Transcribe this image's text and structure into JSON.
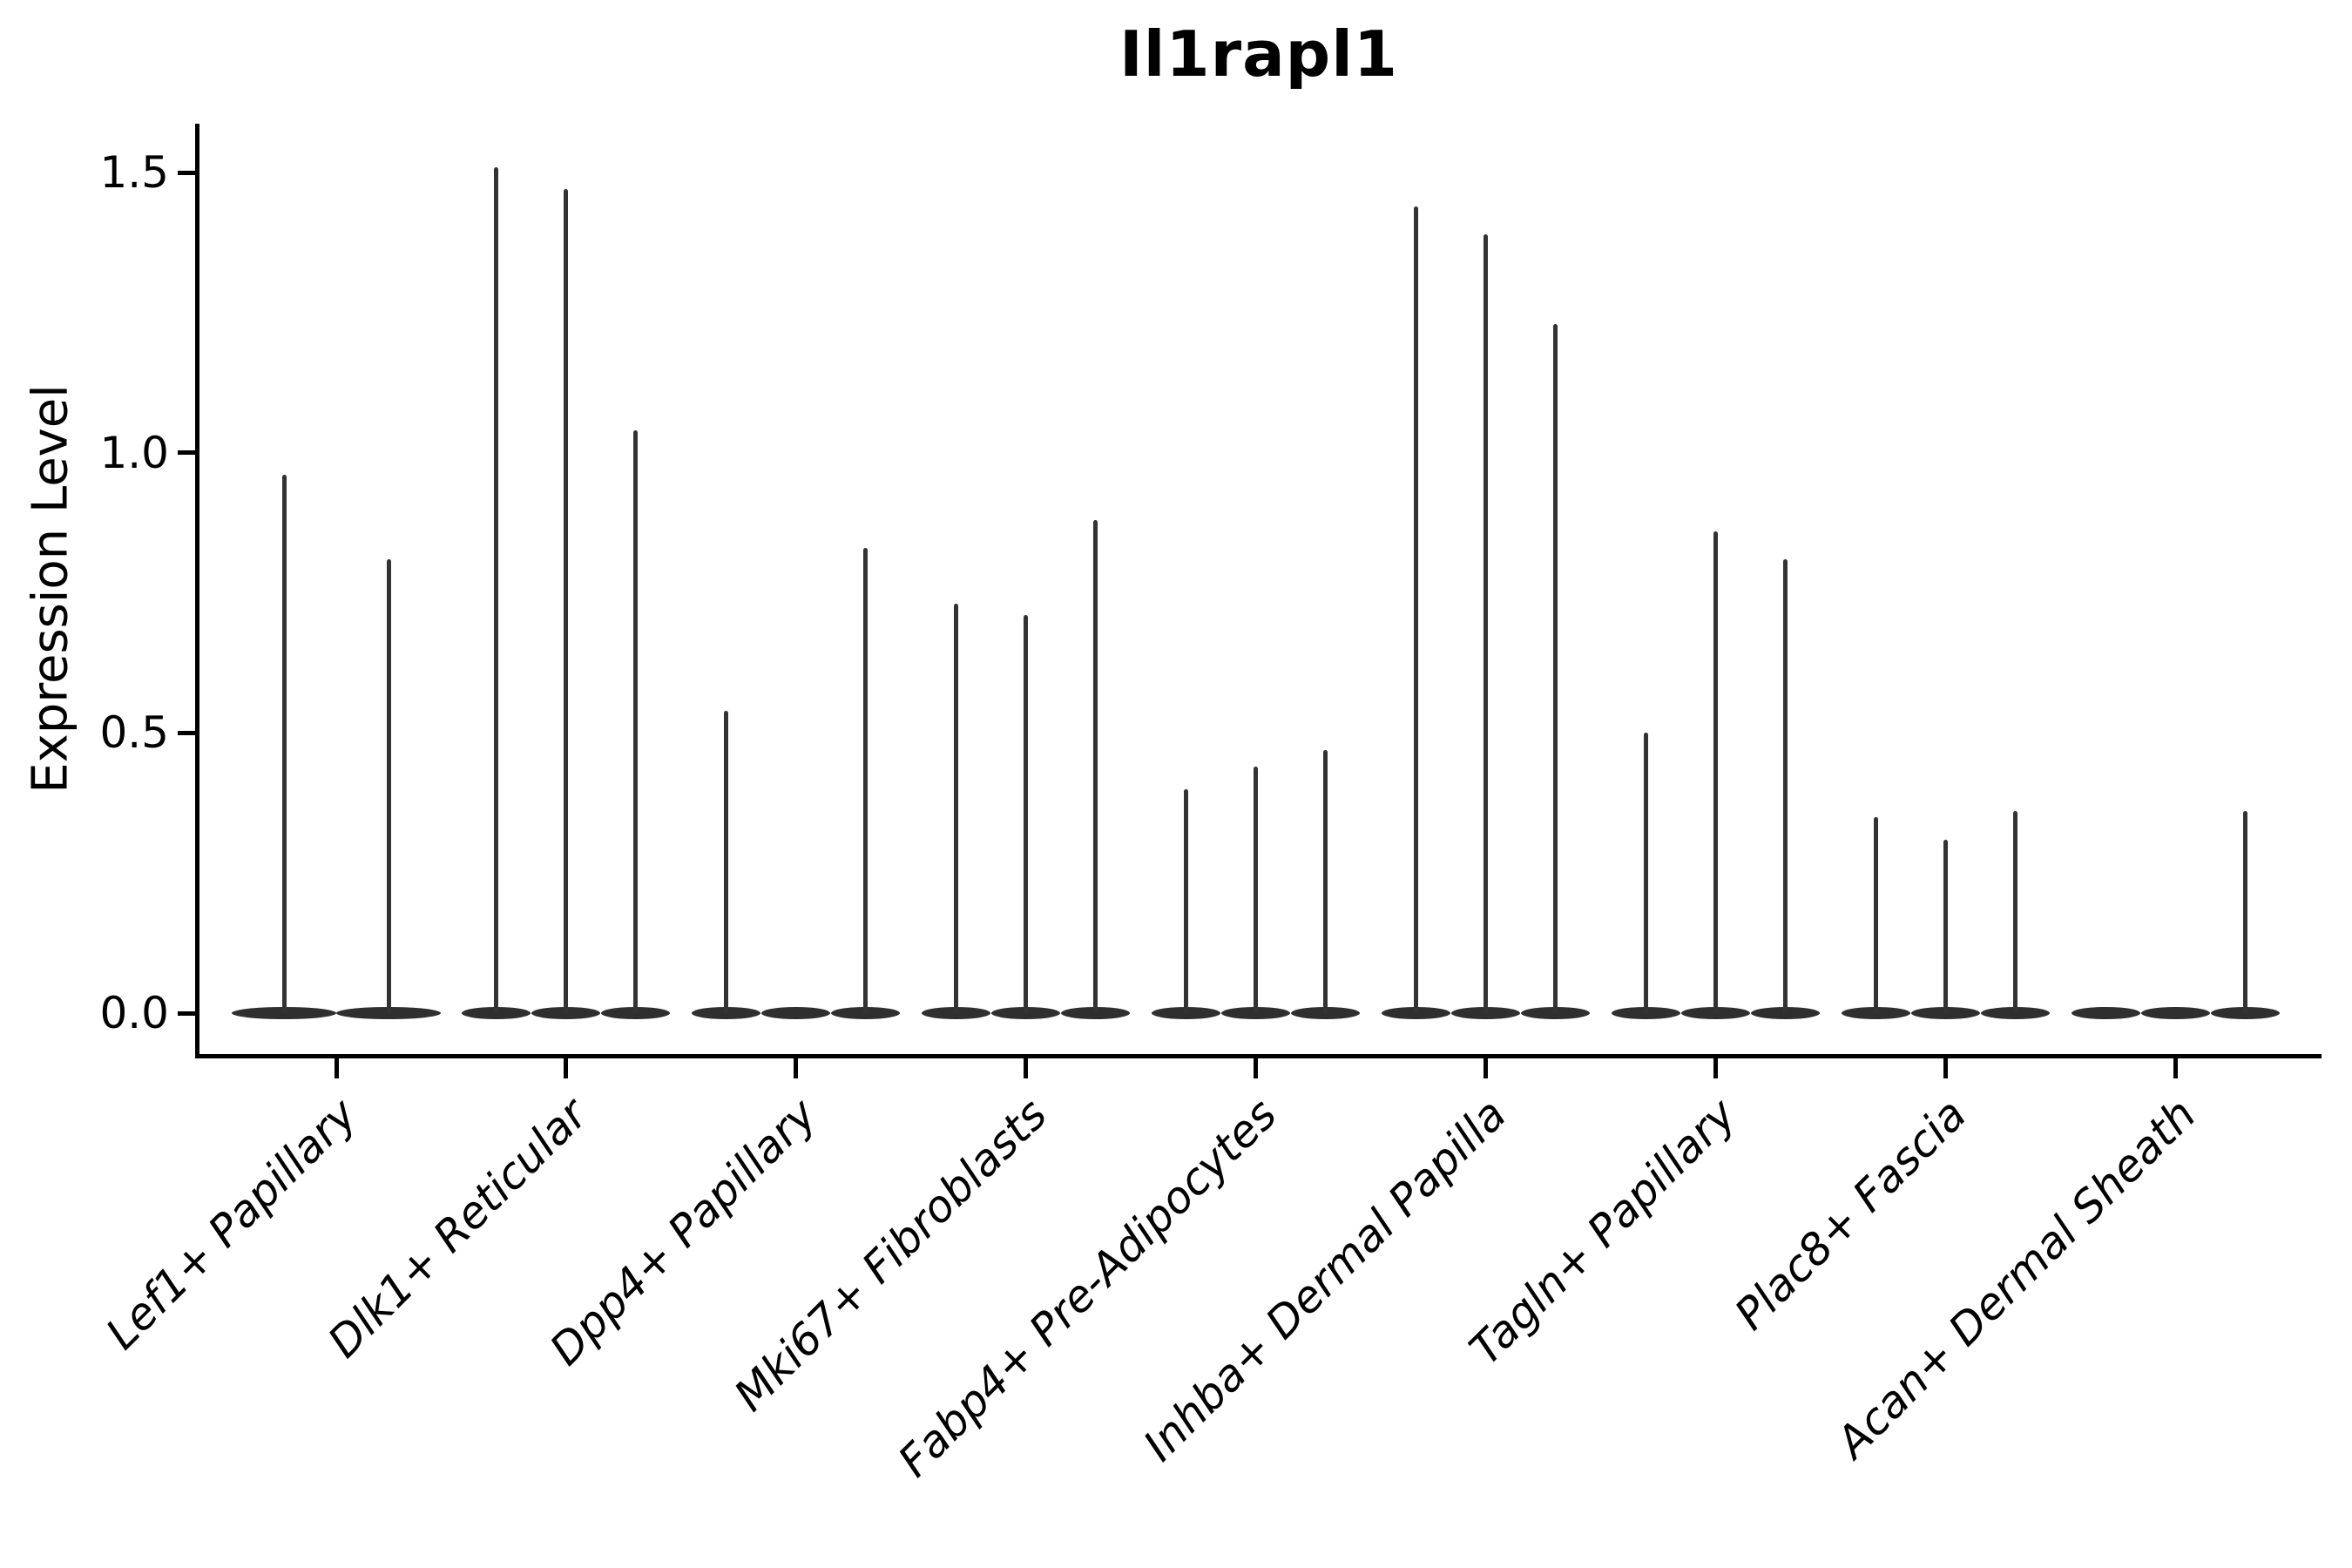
{
  "title": "Il1rapl1",
  "chart_data": {
    "type": "violin",
    "title": "Il1rapl1",
    "xlabel": "",
    "ylabel": "Expression Level",
    "ylim": [
      -0.07,
      1.59
    ],
    "yticks": [
      0.0,
      0.5,
      1.0,
      1.5
    ],
    "ytick_labels": [
      "0.0",
      "0.5",
      "1.0",
      "1.5"
    ],
    "grid": false,
    "legend": "none",
    "x_tick_rotation": 45,
    "violin_color": "#333333",
    "description": "Violin plot of Il1rapl1 expression; most cells at 0 so violins collapse to flat bases with thin spikes reaching each group's maximum expression value",
    "categories": [
      {
        "label": "Lef1+ Papillary",
        "violin_max": [
          0.96,
          0.81
        ]
      },
      {
        "label": "Dlk1+ Reticular",
        "violin_max": [
          1.51,
          1.47,
          1.04
        ]
      },
      {
        "label": "Dpp4+ Papillary",
        "violin_max": [
          0.54,
          0.0,
          0.83
        ]
      },
      {
        "label": "Mki67+ Fibroblasts",
        "violin_max": [
          0.73,
          0.71,
          0.88
        ]
      },
      {
        "label": "Fabp4+ Pre-Adipocytes",
        "violin_max": [
          0.4,
          0.44,
          0.47
        ]
      },
      {
        "label": "Inhba+ Dermal Papilla",
        "violin_max": [
          1.44,
          1.39,
          1.23
        ]
      },
      {
        "label": "Tagln+ Papillary",
        "violin_max": [
          0.5,
          0.86,
          0.81
        ]
      },
      {
        "label": "Plac8+ Fascia",
        "violin_max": [
          0.35,
          0.31,
          0.36
        ]
      },
      {
        "label": "Acan+ Dermal Sheath",
        "violin_max": [
          0.0,
          0.0,
          0.36
        ]
      }
    ]
  }
}
